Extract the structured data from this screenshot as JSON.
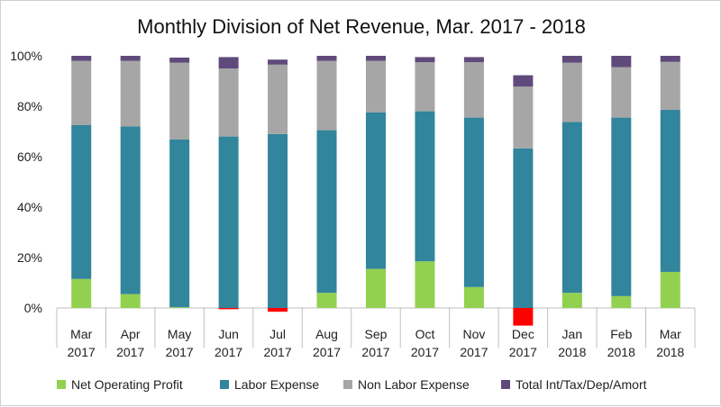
{
  "chart_data": {
    "type": "bar",
    "stacked": true,
    "title": "Monthly Division of Net Revenue,  Mar. 2017 - 2018",
    "ylim": [
      -0.1,
      1.0
    ],
    "y_ticks": [
      "0%",
      "20%",
      "40%",
      "60%",
      "80%",
      "100%"
    ],
    "categories": [
      [
        "Mar",
        "2017"
      ],
      [
        "Apr",
        "2017"
      ],
      [
        "May",
        "2017"
      ],
      [
        "Jun",
        "2017"
      ],
      [
        "Jul",
        "2017"
      ],
      [
        "Aug",
        "2017"
      ],
      [
        "Sep",
        "2017"
      ],
      [
        "Oct",
        "2017"
      ],
      [
        "Nov",
        "2017"
      ],
      [
        "Dec",
        "2017"
      ],
      [
        "Jan",
        "2018"
      ],
      [
        "Feb",
        "2018"
      ],
      [
        "Mar",
        "2018"
      ]
    ],
    "series": [
      {
        "name": "Net Operating Profit",
        "values": [
          0.115,
          0.055,
          0.003,
          -0.005,
          -0.015,
          0.06,
          0.155,
          0.185,
          0.083,
          -0.07,
          0.06,
          0.047,
          0.143
        ],
        "color": "#92d050",
        "negative_color": "#ff0000"
      },
      {
        "name": "Labor Expense",
        "values": [
          0.61,
          0.665,
          0.665,
          0.68,
          0.69,
          0.645,
          0.62,
          0.595,
          0.672,
          0.633,
          0.678,
          0.708,
          0.643
        ],
        "color": "#31859c"
      },
      {
        "name": "Non Labor Expense",
        "values": [
          0.255,
          0.26,
          0.305,
          0.27,
          0.275,
          0.275,
          0.205,
          0.195,
          0.22,
          0.245,
          0.235,
          0.2,
          0.19
        ],
        "color": "#a6a6a6"
      },
      {
        "name": "Total Int/Tax/Dep/Amort",
        "values": [
          0.02,
          0.02,
          0.02,
          0.045,
          0.02,
          0.02,
          0.02,
          0.02,
          0.02,
          0.045,
          0.027,
          0.045,
          0.024
        ],
        "color": "#604a7b"
      }
    ],
    "legend_position": "bottom",
    "grid": "none"
  }
}
